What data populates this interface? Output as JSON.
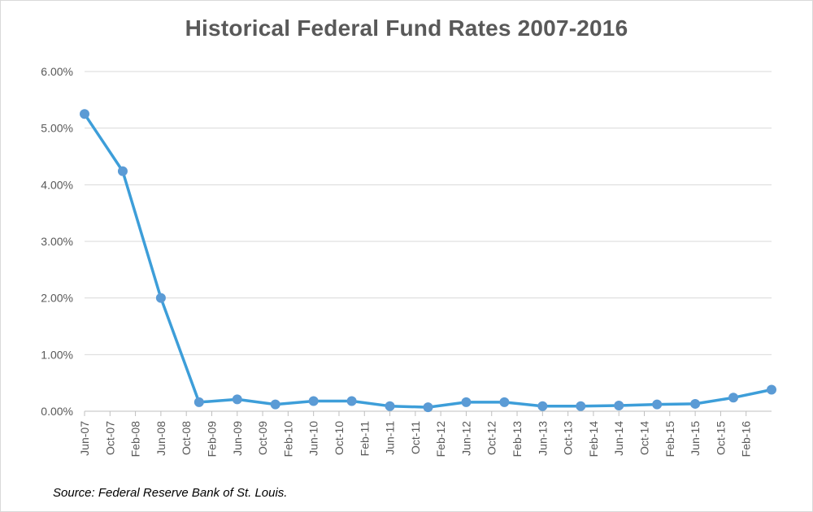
{
  "chart_data": {
    "type": "line",
    "title": "Historical Federal Fund Rates 2007-2016",
    "source": "Source: Federal Reserve Bank of St. Louis.",
    "xlabel": "",
    "ylabel": "",
    "ylim": [
      0,
      6
    ],
    "y_ticks": [
      "0.00%",
      "1.00%",
      "2.00%",
      "3.00%",
      "4.00%",
      "5.00%",
      "6.00%"
    ],
    "x_ticks": [
      "Jun-07",
      "Oct-07",
      "Feb-08",
      "Jun-08",
      "Oct-08",
      "Feb-09",
      "Jun-09",
      "Oct-09",
      "Feb-10",
      "Jun-10",
      "Oct-10",
      "Feb-11",
      "Jun-11",
      "Oct-11",
      "Feb-12",
      "Jun-12",
      "Oct-12",
      "Feb-13",
      "Jun-13",
      "Oct-13",
      "Feb-14",
      "Jun-14",
      "Oct-14",
      "Feb-15",
      "Jun-15",
      "Oct-15",
      "Feb-16"
    ],
    "grid": true,
    "legend": "none",
    "series": [
      {
        "color": "#3d9ed9",
        "marker_color": "#5b9bd5",
        "points": [
          {
            "x": "2007-06",
            "y": 5.25
          },
          {
            "x": "2007-12",
            "y": 4.24
          },
          {
            "x": "2008-06",
            "y": 2.0
          },
          {
            "x": "2008-12",
            "y": 0.16
          },
          {
            "x": "2009-06",
            "y": 0.21
          },
          {
            "x": "2009-12",
            "y": 0.12
          },
          {
            "x": "2010-06",
            "y": 0.18
          },
          {
            "x": "2010-12",
            "y": 0.18
          },
          {
            "x": "2011-06",
            "y": 0.09
          },
          {
            "x": "2011-12",
            "y": 0.07
          },
          {
            "x": "2012-06",
            "y": 0.16
          },
          {
            "x": "2012-12",
            "y": 0.16
          },
          {
            "x": "2013-06",
            "y": 0.09
          },
          {
            "x": "2013-12",
            "y": 0.09
          },
          {
            "x": "2014-06",
            "y": 0.1
          },
          {
            "x": "2014-12",
            "y": 0.12
          },
          {
            "x": "2015-06",
            "y": 0.13
          },
          {
            "x": "2015-12",
            "y": 0.24
          },
          {
            "x": "2016-06",
            "y": 0.38
          }
        ]
      }
    ]
  }
}
